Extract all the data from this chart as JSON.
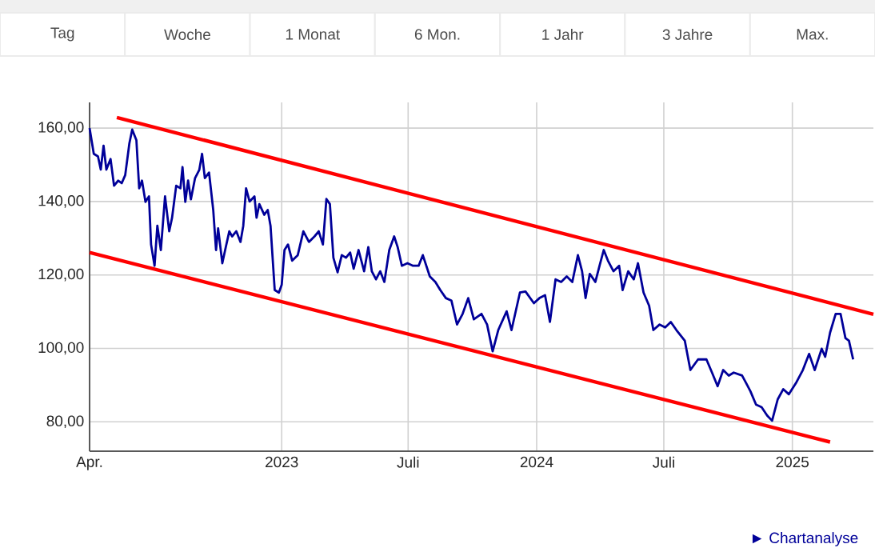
{
  "chart_data": {
    "type": "line",
    "grid": true,
    "marker": "none",
    "line_style": "solid",
    "xlim": [
      "2022-04-01",
      "2025-04-27"
    ],
    "ylim": [
      72,
      167
    ],
    "xticks": [
      {
        "value": "2022-04-01",
        "label": "Apr."
      },
      {
        "value": "2023-01-01",
        "label": "2023"
      },
      {
        "value": "2023-07-01",
        "label": "Juli"
      },
      {
        "value": "2024-01-01",
        "label": "2024"
      },
      {
        "value": "2024-07-01",
        "label": "Juli"
      },
      {
        "value": "2025-01-01",
        "label": "2025"
      }
    ],
    "yticks": [
      {
        "value": 80,
        "label": "80,00"
      },
      {
        "value": 100,
        "label": "100,00"
      },
      {
        "value": 120,
        "label": "120,00"
      },
      {
        "value": 140,
        "label": "140,00"
      },
      {
        "value": 160,
        "label": "160,00"
      }
    ],
    "annotations": [
      "Tag",
      "Woche",
      "1 Monat",
      "6 Mon.",
      "1 Jahr",
      "3 Jahre",
      "Max.",
      "► Chartanalyse"
    ],
    "series": [
      {
        "color": "#000099",
        "x": [
          "2022-04-01",
          "2022-04-07",
          "2022-04-13",
          "2022-04-17",
          "2022-04-21",
          "2022-04-25",
          "2022-05-01",
          "2022-05-06",
          "2022-05-12",
          "2022-05-17",
          "2022-05-22",
          "2022-05-28",
          "2022-06-01",
          "2022-06-07",
          "2022-06-11",
          "2022-06-15",
          "2022-06-20",
          "2022-06-25",
          "2022-06-28",
          "2022-07-03",
          "2022-07-07",
          "2022-07-12",
          "2022-07-18",
          "2022-07-24",
          "2022-07-28",
          "2022-08-03",
          "2022-08-09",
          "2022-08-12",
          "2022-08-16",
          "2022-08-20",
          "2022-08-24",
          "2022-08-30",
          "2022-09-05",
          "2022-09-09",
          "2022-09-13",
          "2022-09-19",
          "2022-09-25",
          "2022-09-29",
          "2022-10-02",
          "2022-10-08",
          "2022-10-13",
          "2022-10-18",
          "2022-10-22",
          "2022-10-28",
          "2022-11-03",
          "2022-11-07",
          "2022-11-11",
          "2022-11-16",
          "2022-11-23",
          "2022-11-26",
          "2022-11-30",
          "2022-12-07",
          "2022-12-12",
          "2022-12-16",
          "2022-12-22",
          "2022-12-28",
          "2023-01-01",
          "2023-01-05",
          "2023-01-10",
          "2023-01-16",
          "2023-01-24",
          "2023-02-01",
          "2023-02-09",
          "2023-02-17",
          "2023-02-23",
          "2023-03-01",
          "2023-03-06",
          "2023-03-11",
          "2023-03-16",
          "2023-03-22",
          "2023-03-28",
          "2023-04-03",
          "2023-04-09",
          "2023-04-14",
          "2023-04-21",
          "2023-04-29",
          "2023-05-05",
          "2023-05-10",
          "2023-05-16",
          "2023-05-22",
          "2023-05-28",
          "2023-06-04",
          "2023-06-11",
          "2023-06-16",
          "2023-06-22",
          "2023-06-30",
          "2023-07-08",
          "2023-07-16",
          "2023-07-22",
          "2023-08-01",
          "2023-08-09",
          "2023-08-16",
          "2023-08-24",
          "2023-09-01",
          "2023-09-09",
          "2023-09-17",
          "2023-09-25",
          "2023-10-03",
          "2023-10-14",
          "2023-10-22",
          "2023-10-30",
          "2023-11-07",
          "2023-11-19",
          "2023-11-26",
          "2023-12-08",
          "2023-12-16",
          "2023-12-28",
          "2024-01-05",
          "2024-01-13",
          "2024-01-20",
          "2024-01-28",
          "2024-02-05",
          "2024-02-13",
          "2024-02-21",
          "2024-02-29",
          "2024-03-06",
          "2024-03-11",
          "2024-03-17",
          "2024-03-25",
          "2024-03-31",
          "2024-04-06",
          "2024-04-12",
          "2024-04-20",
          "2024-04-28",
          "2024-05-03",
          "2024-05-11",
          "2024-05-19",
          "2024-05-25",
          "2024-06-02",
          "2024-06-10",
          "2024-06-16",
          "2024-06-25",
          "2024-07-03",
          "2024-07-11",
          "2024-07-19",
          "2024-07-31",
          "2024-08-08",
          "2024-08-19",
          "2024-08-31",
          "2024-09-08",
          "2024-09-16",
          "2024-09-24",
          "2024-10-02",
          "2024-10-09",
          "2024-10-21",
          "2024-10-27",
          "2024-11-02",
          "2024-11-10",
          "2024-11-18",
          "2024-11-26",
          "2024-12-03",
          "2024-12-11",
          "2024-12-19",
          "2024-12-27",
          "2025-01-06",
          "2025-01-16",
          "2025-01-25",
          "2025-02-02",
          "2025-02-12",
          "2025-02-17",
          "2025-02-24",
          "2025-03-04",
          "2025-03-11",
          "2025-03-18",
          "2025-03-23",
          "2025-03-29"
        ],
        "values": [
          160,
          153,
          152.3,
          148.7,
          155.2,
          148.7,
          151.6,
          144.3,
          145.7,
          145,
          147.2,
          155.9,
          159.6,
          156.7,
          143.6,
          145.7,
          139.9,
          141.4,
          128.3,
          122.5,
          133.4,
          126.8,
          141.4,
          131.9,
          135.5,
          144.3,
          143.6,
          149.4,
          139.9,
          145.7,
          140.6,
          146.4,
          148.6,
          153,
          146.4,
          147.9,
          137.7,
          126.8,
          132.7,
          123.2,
          127.6,
          131.9,
          130.5,
          131.9,
          129,
          133.4,
          143.6,
          140,
          141.4,
          135.6,
          139.3,
          136.4,
          137.7,
          133.4,
          115.9,
          115.2,
          117.3,
          126.8,
          128.3,
          123.9,
          125.4,
          131.9,
          129,
          130.5,
          131.9,
          128.3,
          140.7,
          139.3,
          124.7,
          120.7,
          125.4,
          124.7,
          126.1,
          121.7,
          126.8,
          121,
          127.6,
          121,
          118.8,
          121,
          118.1,
          126.8,
          130.5,
          127.6,
          122.5,
          123.2,
          122.5,
          122.5,
          125.4,
          119.6,
          118.1,
          115.9,
          113.7,
          113,
          106.5,
          109.4,
          113.7,
          107.9,
          109.4,
          106.5,
          99.2,
          105,
          110.1,
          105,
          115.2,
          115.5,
          112.3,
          113.7,
          114.5,
          107.2,
          118.8,
          118.1,
          119.6,
          118.1,
          125.4,
          121,
          113.7,
          120.3,
          118.1,
          122.5,
          126.8,
          123.9,
          121,
          122.5,
          115.9,
          121,
          118.8,
          123.2,
          115.2,
          111.6,
          105,
          106.5,
          105.7,
          107.2,
          105,
          102.1,
          94.1,
          97,
          97,
          93.4,
          89.7,
          94.1,
          92.6,
          93.4,
          92.6,
          90.5,
          88.3,
          84.7,
          84,
          81.7,
          80.3,
          86.1,
          88.9,
          87.5,
          90.5,
          94.1,
          98.5,
          94.1,
          99.9,
          97.7,
          104.3,
          109.4,
          109.4,
          102.8,
          102.1,
          97
        ]
      },
      {
        "color": "#ff0000",
        "x": [
          "2022-05-10",
          "2025-04-27"
        ],
        "values": [
          162.9,
          109.3
        ]
      },
      {
        "color": "#ff0000",
        "x": [
          "2022-04-01",
          "2025-02-24"
        ],
        "values": [
          126.1,
          74.5
        ]
      }
    ]
  }
}
